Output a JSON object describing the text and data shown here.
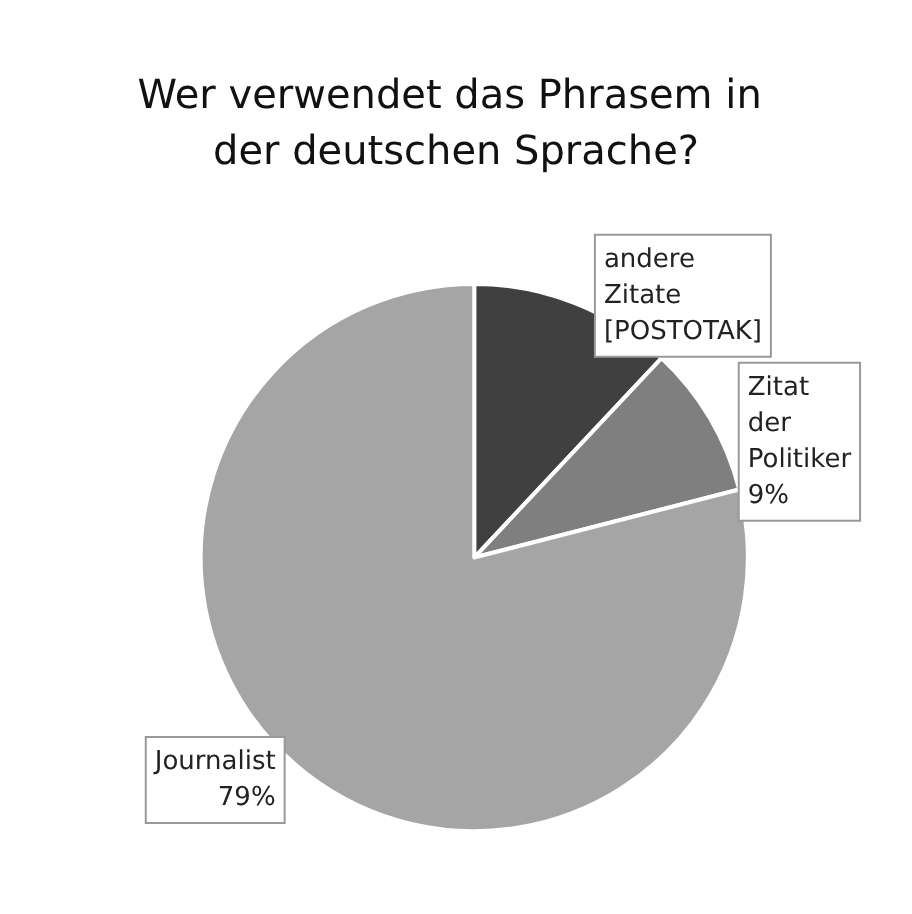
{
  "chart_data": {
    "type": "pie",
    "title": "Wer verwendet das Phrasem in der deutschen Sprache?",
    "categories": [
      "andere Zitate",
      "Zitat der Politiker",
      "Journalist"
    ],
    "values": [
      12,
      9,
      79
    ],
    "value_labels": [
      "[POSTOTAK]",
      "9%",
      "79%"
    ],
    "colors": [
      "#404040",
      "#7f7f7f",
      "#a5a5a5"
    ],
    "legend": false
  }
}
